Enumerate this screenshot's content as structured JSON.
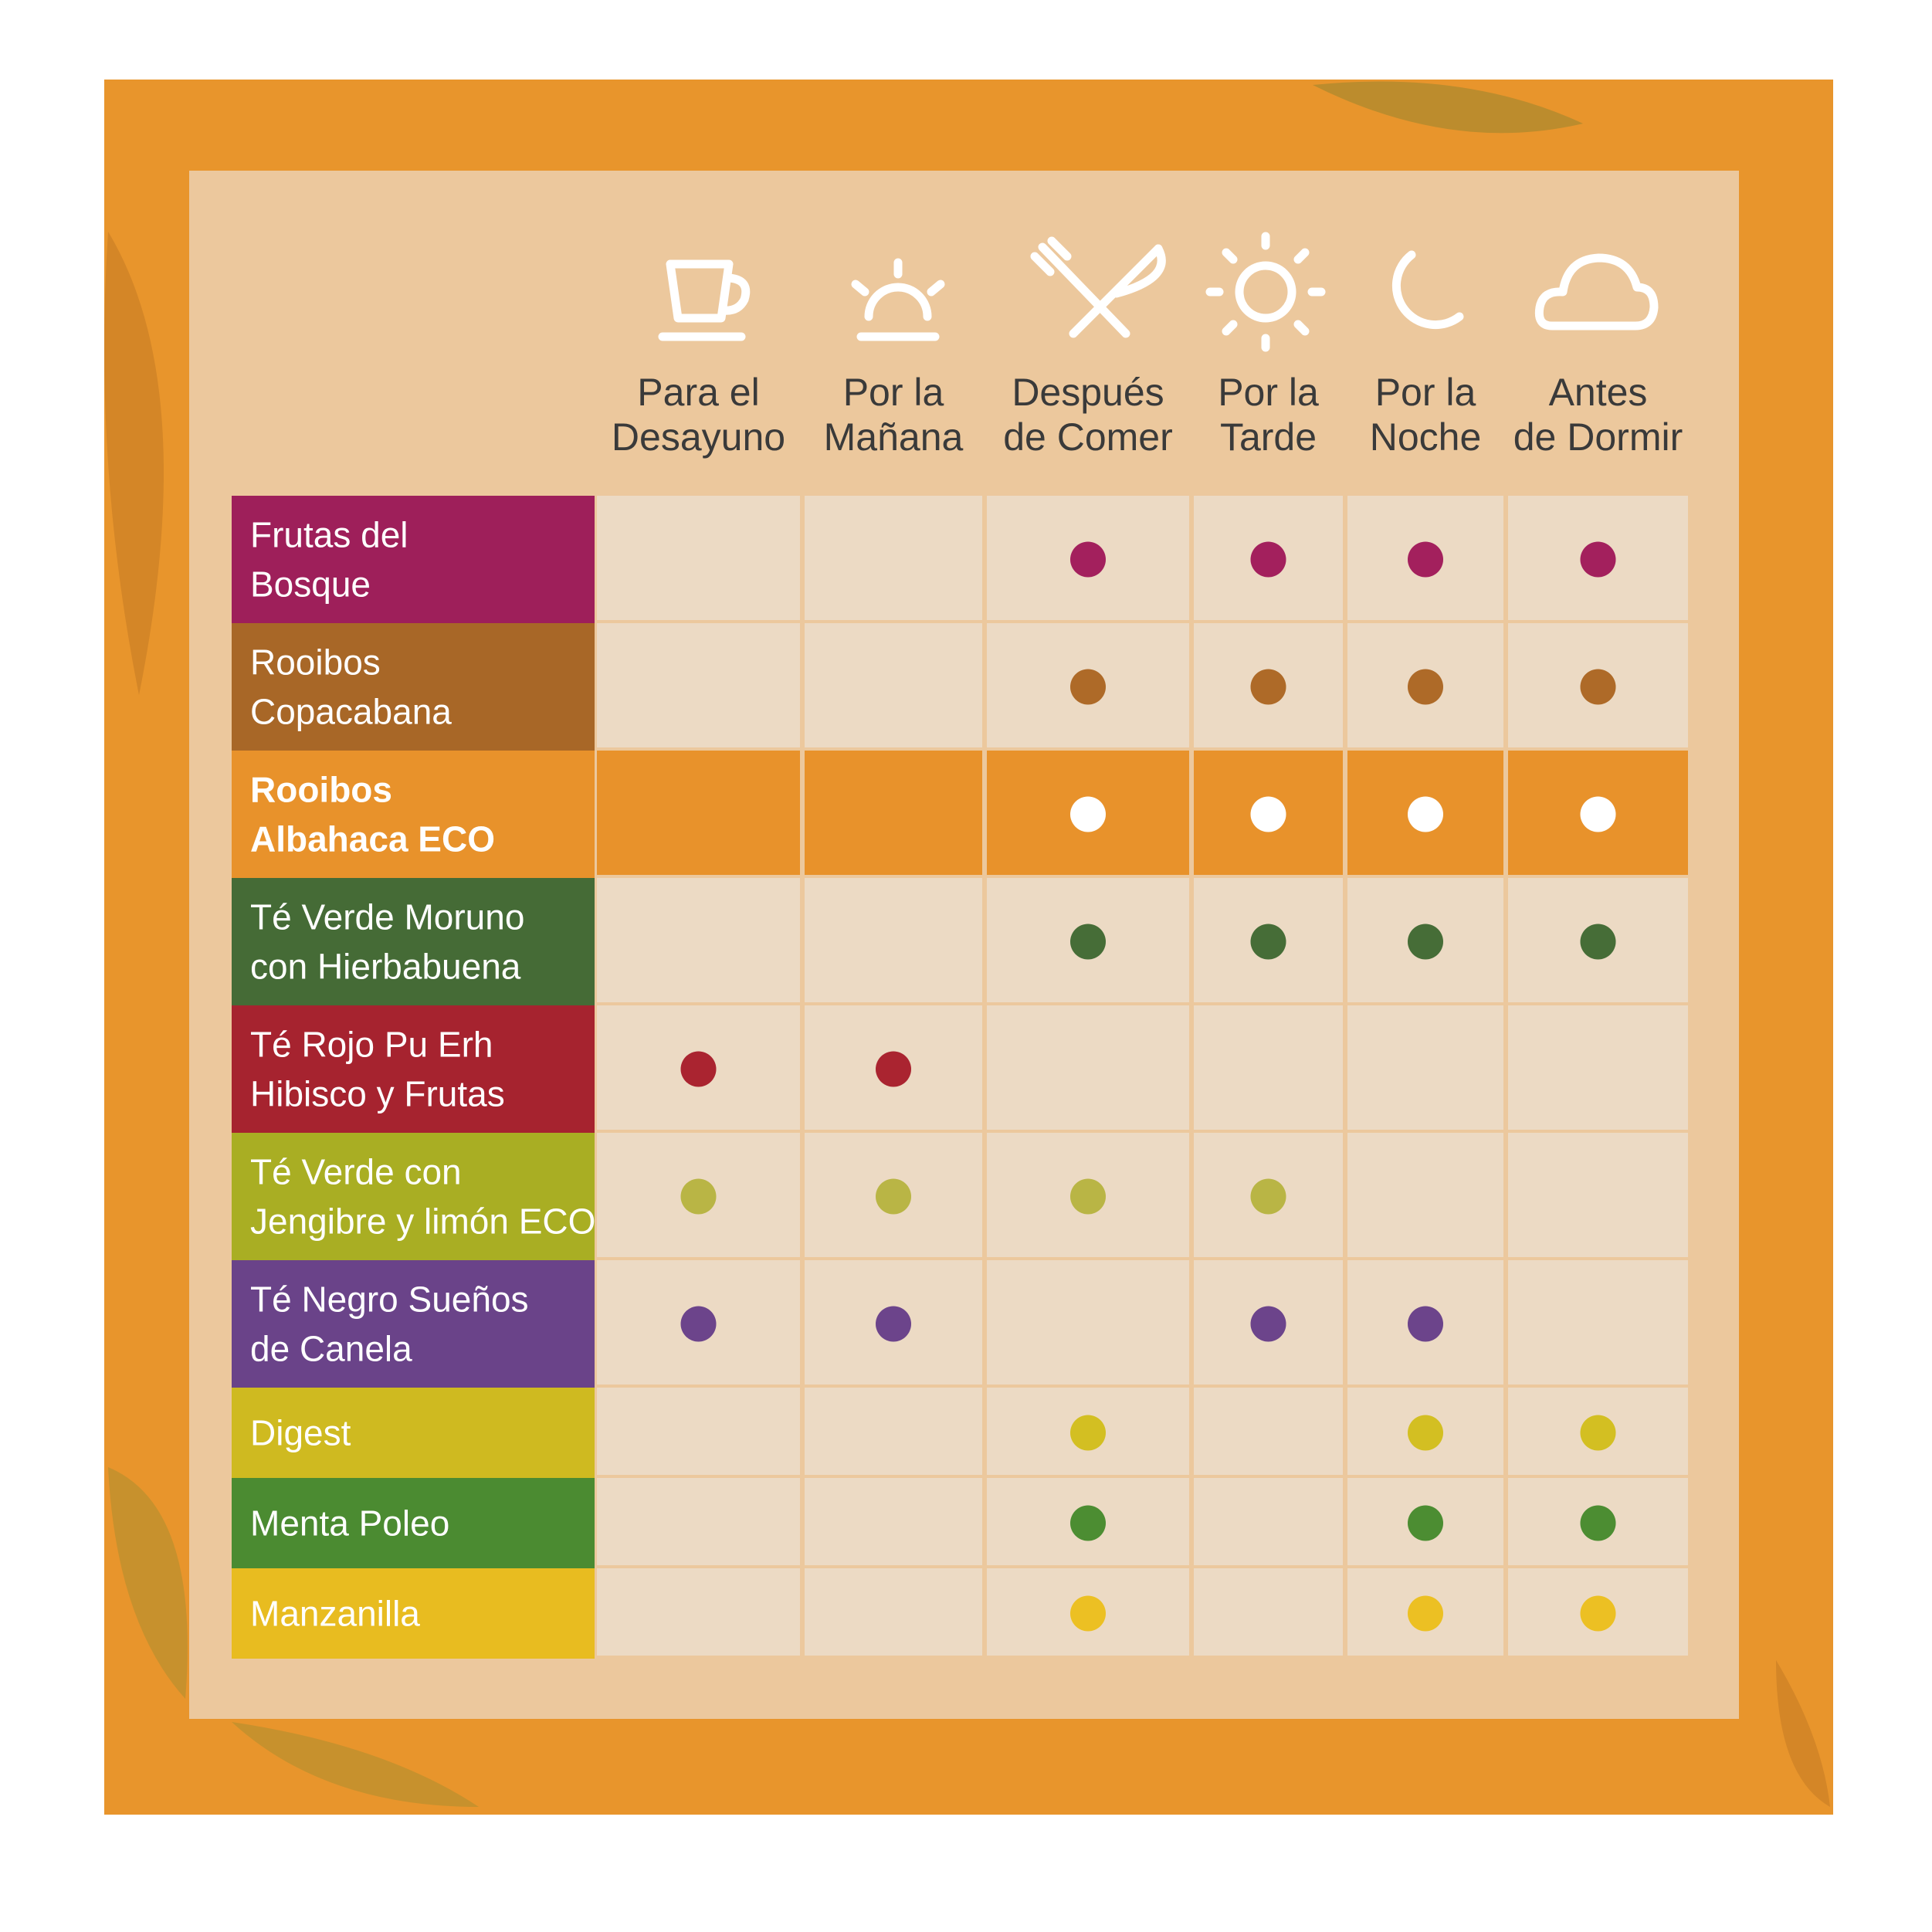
{
  "table": {
    "columns": [
      {
        "lines": [
          "Para el",
          "Desayuno"
        ]
      },
      {
        "lines": [
          "Por la",
          "Mañana"
        ]
      },
      {
        "lines": [
          "Después",
          "de Comer"
        ]
      },
      {
        "lines": [
          "Por la",
          "Tarde"
        ]
      },
      {
        "lines": [
          "Por la",
          "Noche"
        ]
      },
      {
        "lines": [
          "Antes",
          "de Dormir"
        ]
      }
    ],
    "rows": [
      {
        "lines": [
          "Frutas del",
          "Bosque"
        ],
        "color": "#9e1f5a",
        "dot_color": "#a3205d",
        "marks": [
          false,
          false,
          true,
          true,
          true,
          true
        ]
      },
      {
        "lines": [
          "Rooibos",
          "Copacabana"
        ],
        "color": "#a86727",
        "dot_color": "#ae6a28",
        "marks": [
          false,
          false,
          true,
          true,
          true,
          true
        ]
      },
      {
        "lines": [
          "Rooibos",
          "Albahaca ECO"
        ],
        "color": "#e8922b",
        "dot_color": "#ffffff",
        "highlighted": true,
        "marks": [
          false,
          false,
          true,
          true,
          true,
          true
        ]
      },
      {
        "lines": [
          "Té Verde Moruno",
          "con Hierbabuena"
        ],
        "color": "#456b36",
        "dot_color": "#466d37",
        "marks": [
          false,
          false,
          true,
          true,
          true,
          true
        ]
      },
      {
        "lines": [
          "Té Rojo Pu Erh",
          "Hibisco y Frutas"
        ],
        "color": "#a6232f",
        "dot_color": "#aa2430",
        "marks": [
          true,
          true,
          false,
          false,
          false,
          false
        ]
      },
      {
        "lines": [
          "Té Verde con",
          "Jengibre y limón ECO"
        ],
        "color": "#a9ae23",
        "dot_color": "#b9b545",
        "marks": [
          true,
          true,
          true,
          true,
          false,
          false
        ]
      },
      {
        "lines": [
          "Té Negro Sueños",
          "de Canela"
        ],
        "color": "#6a4389",
        "dot_color": "#6c448b",
        "marks": [
          true,
          true,
          false,
          true,
          true,
          false
        ]
      },
      {
        "lines": [
          "Digest"
        ],
        "color": "#cfba20",
        "dot_color": "#d3bf22",
        "marks": [
          false,
          false,
          true,
          false,
          true,
          true
        ]
      },
      {
        "lines": [
          "Menta Poleo"
        ],
        "color": "#4b8b31",
        "dot_color": "#4c8d32",
        "marks": [
          false,
          false,
          true,
          false,
          true,
          true
        ]
      },
      {
        "lines": [
          "Manzanilla"
        ],
        "color": "#e8bc20",
        "dot_color": "#ecc023",
        "marks": [
          false,
          false,
          true,
          false,
          true,
          true
        ]
      }
    ]
  }
}
